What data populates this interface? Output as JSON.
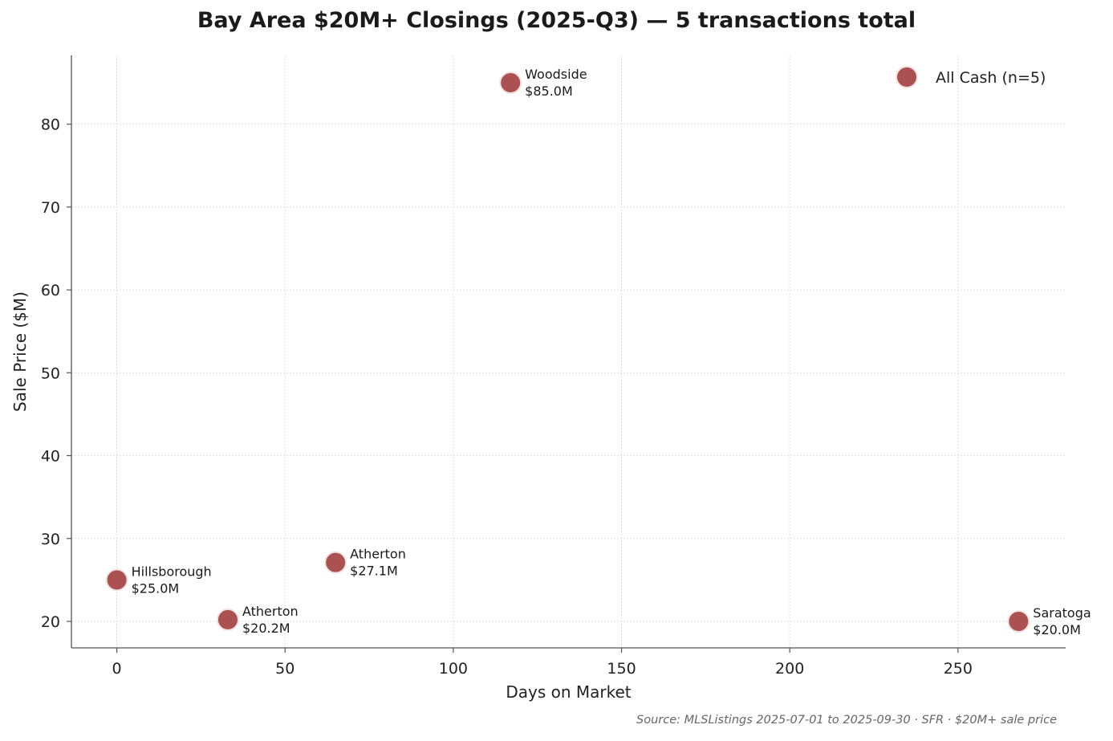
{
  "chart_data": {
    "type": "scatter",
    "title": "Bay Area $20M+ Closings (2025-Q3) — 5 transactions total",
    "xlabel": "Days on Market",
    "ylabel": "Sale Price ($M)",
    "xlim": [
      -13.5,
      282
    ],
    "ylim": [
      16.8,
      88.3
    ],
    "xticks": [
      0,
      50,
      100,
      150,
      200,
      250
    ],
    "yticks": [
      20,
      30,
      40,
      50,
      60,
      70,
      80
    ],
    "grid": true,
    "legend_position": "top-right",
    "series": [
      {
        "name": "All Cash (n=5)",
        "color": "#a84848",
        "points": [
          {
            "x": 0,
            "y": 25.0,
            "label": "Hillsborough",
            "price_label": "$25.0M"
          },
          {
            "x": 33,
            "y": 20.2,
            "label": "Atherton",
            "price_label": "$20.2M"
          },
          {
            "x": 65,
            "y": 27.1,
            "label": "Atherton",
            "price_label": "$27.1M"
          },
          {
            "x": 117,
            "y": 85.0,
            "label": "Woodside",
            "price_label": "$85.0M"
          },
          {
            "x": 268,
            "y": 20.0,
            "label": "Saratoga",
            "price_label": "$20.0M"
          }
        ]
      }
    ],
    "source": "Source: MLSListings 2025-07-01 to 2025-09-30 · SFR · $20M+ sale price"
  }
}
